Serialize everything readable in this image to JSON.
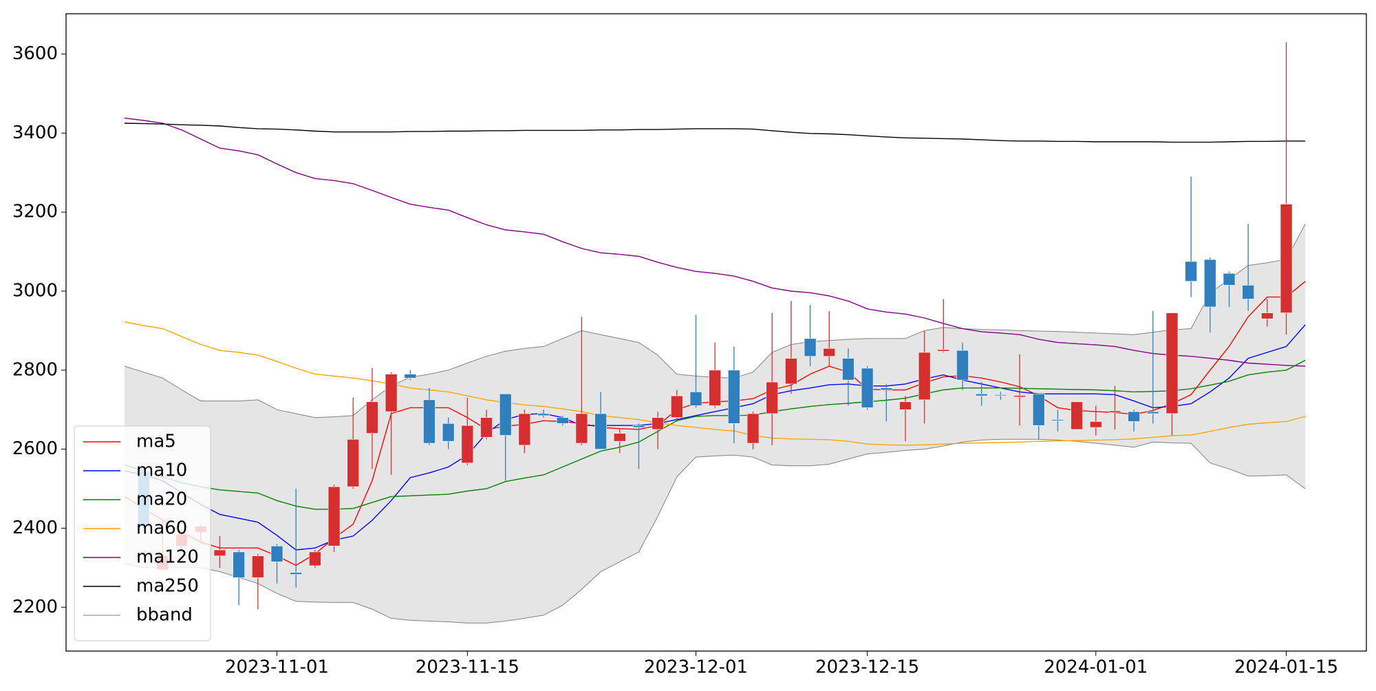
{
  "chart_data": {
    "type": "candlestick",
    "categories": [
      null,
      null,
      null,
      null,
      null,
      null,
      null,
      null,
      "2023-11-01",
      null,
      null,
      null,
      null,
      null,
      null,
      null,
      null,
      null,
      "2023-11-15",
      null,
      null,
      null,
      null,
      null,
      null,
      null,
      null,
      null,
      null,
      null,
      "2023-12-01",
      null,
      null,
      null,
      null,
      null,
      null,
      null,
      null,
      "2023-12-15",
      null,
      null,
      null,
      null,
      null,
      null,
      null,
      null,
      null,
      null,
      null,
      "2024-01-01",
      null,
      null,
      null,
      null,
      null,
      null,
      null,
      null,
      null,
      "2024-01-15",
      null
    ],
    "open": [
      null,
      2545,
      2295,
      2355,
      2390,
      2330,
      2340,
      2275,
      2355,
      2288,
      2305,
      2355,
      2505,
      2640,
      2695,
      2790,
      2725,
      2665,
      2565,
      2630,
      2740,
      2610,
      2690,
      2680,
      2615,
      2690,
      2620,
      2660,
      2650,
      2680,
      2745,
      2710,
      2800,
      2615,
      2690,
      2765,
      2880,
      2835,
      2830,
      2805,
      2755,
      2700,
      2725,
      2848,
      2850,
      2740,
      2738,
      2732,
      2740,
      2675,
      2650,
      2655,
      2693,
      2695,
      2695,
      2690,
      3075,
      3080,
      3045,
      3015,
      2930,
      2945,
      null
    ],
    "high": [
      null,
      2550,
      2420,
      2390,
      2410,
      2380,
      2345,
      2335,
      2360,
      2500,
      2345,
      2510,
      2730,
      2805,
      2795,
      2800,
      2755,
      2680,
      2730,
      2700,
      2740,
      2700,
      2700,
      2685,
      2935,
      2745,
      2650,
      2665,
      2695,
      2750,
      2940,
      2870,
      2860,
      2695,
      2945,
      2975,
      2965,
      2950,
      2855,
      2810,
      2765,
      2735,
      2900,
      2980,
      2870,
      2770,
      2745,
      2840,
      2740,
      2700,
      2720,
      2710,
      2760,
      2700,
      2950,
      2945,
      3290,
      3085,
      3050,
      3170,
      2980,
      3630,
      null
    ],
    "low": [
      null,
      2400,
      2290,
      2340,
      2360,
      2300,
      2205,
      2195,
      2260,
      2250,
      2300,
      2340,
      2500,
      2550,
      2535,
      2775,
      2610,
      2600,
      2560,
      2625,
      2520,
      2590,
      2680,
      2660,
      2610,
      2600,
      2590,
      2550,
      2600,
      2670,
      2705,
      2705,
      2615,
      2600,
      2610,
      2740,
      2810,
      2810,
      2710,
      2700,
      2670,
      2620,
      2665,
      2845,
      2750,
      2710,
      2725,
      2660,
      2625,
      2645,
      2650,
      2635,
      2650,
      2645,
      2665,
      2635,
      2985,
      2895,
      2960,
      2950,
      2910,
      2890,
      null
    ],
    "close": [
      null,
      2405,
      2330,
      2385,
      2405,
      2345,
      2275,
      2330,
      2315,
      2283,
      2340,
      2505,
      2625,
      2720,
      2790,
      2780,
      2615,
      2620,
      2660,
      2680,
      2635,
      2690,
      2685,
      2665,
      2690,
      2600,
      2640,
      2655,
      2680,
      2735,
      2710,
      2800,
      2665,
      2690,
      2770,
      2830,
      2835,
      2855,
      2775,
      2705,
      2750,
      2720,
      2845,
      2852,
      2775,
      2735,
      2737,
      2736,
      2660,
      2672,
      2720,
      2670,
      2697,
      2670,
      2690,
      2945,
      3025,
      2960,
      3015,
      2980,
      2945,
      3220,
      null
    ],
    "up_color": "#d62f2f",
    "down_color": "#2f7fbf",
    "series": [
      {
        "name": "ma5",
        "color": "#ff0000",
        "values": [
          2480,
          2450,
          2420,
          2390,
          2365,
          2350,
          2350,
          2350,
          2330,
          2306,
          2335,
          2375,
          2410,
          2520,
          2690,
          2705,
          2705,
          2705,
          2680,
          2650,
          2658,
          2663,
          2672,
          2670,
          2665,
          2655,
          2652,
          2650,
          2660,
          2700,
          2716,
          2720,
          2722,
          2728,
          2750,
          2762,
          2790,
          2810,
          2795,
          2752,
          2750,
          2750,
          2768,
          2783,
          2786,
          2780,
          2770,
          2758,
          2735,
          2705,
          2698,
          2695,
          2693,
          2688,
          2698,
          2715,
          2738,
          2800,
          2860,
          2935,
          2985,
          2985,
          3025
        ]
      },
      {
        "name": "ma10",
        "color": "#0000ff",
        "values": [
          2545,
          2535,
          2520,
          2490,
          2460,
          2435,
          2425,
          2415,
          2382,
          2345,
          2350,
          2370,
          2380,
          2420,
          2470,
          2528,
          2540,
          2555,
          2585,
          2640,
          2675,
          2688,
          2690,
          2680,
          2660,
          2660,
          2660,
          2660,
          2665,
          2675,
          2685,
          2695,
          2705,
          2715,
          2738,
          2748,
          2755,
          2763,
          2765,
          2760,
          2760,
          2765,
          2778,
          2788,
          2775,
          2765,
          2755,
          2745,
          2740,
          2740,
          2740,
          2740,
          2738,
          2722,
          2705,
          2708,
          2715,
          2745,
          2780,
          2830,
          2845,
          2860,
          2915
        ]
      },
      {
        "name": "ma20",
        "color": "#008000",
        "values": [
          2560,
          2545,
          2530,
          2515,
          2505,
          2497,
          2493,
          2489,
          2470,
          2456,
          2448,
          2448,
          2450,
          2465,
          2480,
          2482,
          2484,
          2486,
          2494,
          2500,
          2518,
          2527,
          2535,
          2555,
          2575,
          2595,
          2605,
          2618,
          2645,
          2672,
          2683,
          2685,
          2685,
          2686,
          2695,
          2702,
          2708,
          2713,
          2716,
          2720,
          2724,
          2729,
          2740,
          2750,
          2755,
          2755,
          2755,
          2754,
          2753,
          2752,
          2751,
          2750,
          2748,
          2745,
          2746,
          2748,
          2753,
          2762,
          2772,
          2788,
          2795,
          2800,
          2825
        ]
      },
      {
        "name": "ma60",
        "color": "#ffa500",
        "values": [
          2922,
          2913,
          2905,
          2885,
          2865,
          2850,
          2845,
          2838,
          2822,
          2805,
          2790,
          2785,
          2780,
          2773,
          2765,
          2755,
          2750,
          2745,
          2735,
          2725,
          2718,
          2712,
          2708,
          2702,
          2695,
          2685,
          2680,
          2675,
          2667,
          2660,
          2655,
          2650,
          2646,
          2635,
          2628,
          2626,
          2625,
          2624,
          2620,
          2613,
          2611,
          2610,
          2611,
          2613,
          2615,
          2616,
          2617,
          2618,
          2620,
          2621,
          2622,
          2623,
          2624,
          2626,
          2630,
          2634,
          2636,
          2645,
          2655,
          2663,
          2667,
          2670,
          2683
        ]
      },
      {
        "name": "ma120",
        "color": "#800080",
        "values": [
          3438,
          3432,
          3425,
          3408,
          3385,
          3362,
          3355,
          3345,
          3322,
          3300,
          3285,
          3280,
          3272,
          3255,
          3237,
          3220,
          3212,
          3205,
          3186,
          3168,
          3155,
          3150,
          3144,
          3125,
          3108,
          3097,
          3093,
          3088,
          3073,
          3060,
          3050,
          3045,
          3038,
          3025,
          3008,
          3000,
          2996,
          2988,
          2975,
          2955,
          2947,
          2942,
          2932,
          2918,
          2905,
          2897,
          2894,
          2890,
          2878,
          2870,
          2867,
          2864,
          2860,
          2850,
          2842,
          2838,
          2835,
          2830,
          2825,
          2818,
          2815,
          2812,
          2810
        ]
      },
      {
        "name": "ma250",
        "color": "#000000",
        "values": [
          3425,
          3424,
          3423,
          3421,
          3420,
          3418,
          3414,
          3411,
          3410,
          3408,
          3405,
          3403,
          3403,
          3403,
          3403,
          3404,
          3404,
          3405,
          3405,
          3406,
          3406,
          3407,
          3407,
          3407,
          3407,
          3408,
          3408,
          3409,
          3409,
          3410,
          3411,
          3411,
          3411,
          3410,
          3406,
          3402,
          3399,
          3398,
          3396,
          3393,
          3390,
          3388,
          3387,
          3386,
          3385,
          3383,
          3381,
          3380,
          3380,
          3379,
          3379,
          3378,
          3378,
          3378,
          3378,
          3377,
          3377,
          3377,
          3378,
          3379,
          3379,
          3380,
          3380
        ]
      }
    ],
    "band": {
      "name": "bband",
      "color": "#808080",
      "fill": "#e5e5e5",
      "upper": [
        2810,
        2795,
        2780,
        2750,
        2722,
        2722,
        2722,
        2725,
        2700,
        2690,
        2680,
        2682,
        2685,
        2725,
        2760,
        2782,
        2790,
        2800,
        2818,
        2835,
        2848,
        2855,
        2860,
        2880,
        2900,
        2890,
        2880,
        2870,
        2838,
        2790,
        2785,
        2782,
        2780,
        2795,
        2845,
        2865,
        2872,
        2875,
        2878,
        2880,
        2880,
        2880,
        2900,
        2908,
        2905,
        2903,
        2902,
        2900,
        2899,
        2898,
        2896,
        2894,
        2892,
        2890,
        2896,
        2902,
        2905,
        2995,
        3030,
        3065,
        3072,
        3080,
        3170
      ],
      "lower": [
        2310,
        2300,
        2300,
        2300,
        2300,
        2290,
        2275,
        2260,
        2235,
        2215,
        2213,
        2212,
        2212,
        2195,
        2172,
        2167,
        2165,
        2163,
        2160,
        2160,
        2165,
        2172,
        2180,
        2205,
        2245,
        2290,
        2315,
        2340,
        2430,
        2530,
        2580,
        2583,
        2585,
        2580,
        2560,
        2558,
        2558,
        2562,
        2575,
        2588,
        2592,
        2597,
        2600,
        2608,
        2618,
        2623,
        2625,
        2625,
        2625,
        2623,
        2620,
        2615,
        2610,
        2605,
        2618,
        2616,
        2615,
        2565,
        2550,
        2532,
        2533,
        2535,
        2500
      ]
    },
    "ylim": [
      2089,
      3702
    ],
    "yticks": [
      2200,
      2400,
      2600,
      2800,
      3000,
      3200,
      3400,
      3600
    ],
    "legend": "lower left"
  }
}
